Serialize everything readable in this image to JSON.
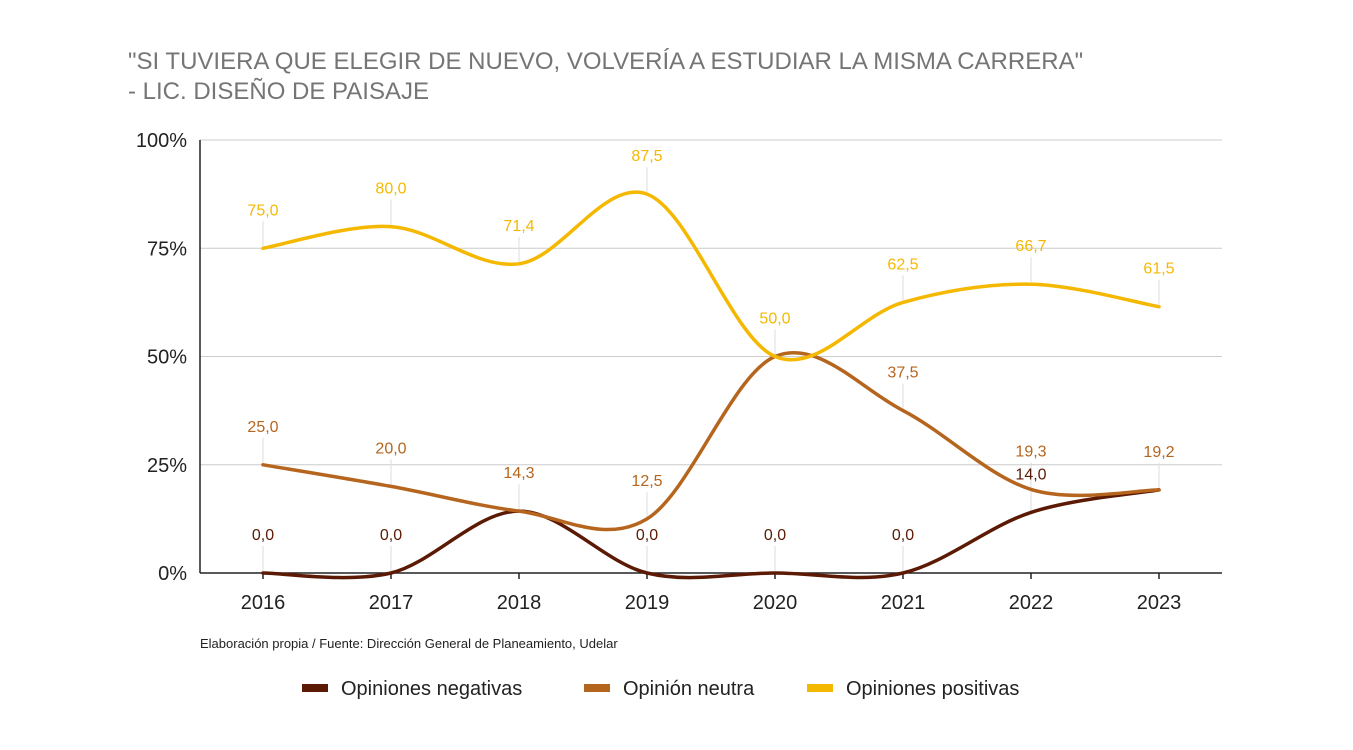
{
  "chart_data": {
    "type": "line",
    "title_line1": "\"SI TUVIERA QUE ELEGIR DE NUEVO, VOLVERÍA A ESTUDIAR LA MISMA CARRERA\"",
    "title_line2": "-  LIC. DISEÑO DE PAISAJE",
    "source": "Elaboración propia / Fuente: Dirección General de Planeamiento, Udelar",
    "categories": [
      "2016",
      "2017",
      "2018",
      "2019",
      "2020",
      "2021",
      "2022",
      "2023"
    ],
    "ylim": [
      0,
      100
    ],
    "yticks": [
      0,
      25,
      50,
      75,
      100
    ],
    "ytick_labels": [
      "0%",
      "25%",
      "50%",
      "75%",
      "100%"
    ],
    "grid": true,
    "smooth": true,
    "legend_position": "bottom",
    "series": [
      {
        "name": "Opiniones negativas",
        "color": "#5c1a05",
        "values": [
          0.0,
          0.0,
          14.3,
          0.0,
          0.0,
          0.0,
          14.0,
          19.2
        ],
        "labels": [
          "0,0",
          "0,0",
          "",
          "0,0",
          "0,0",
          "0,0",
          "14,0",
          ""
        ]
      },
      {
        "name": "Opinión neutra",
        "color": "#b5651d",
        "values": [
          25.0,
          20.0,
          14.3,
          12.5,
          50.0,
          37.5,
          19.3,
          19.2
        ],
        "labels": [
          "25,0",
          "20,0",
          "14,3",
          "12,5",
          "",
          "37,5",
          "19,3",
          "19,2"
        ]
      },
      {
        "name": "Opiniones positivas",
        "color": "#f5b800",
        "values": [
          75.0,
          80.0,
          71.4,
          87.5,
          50.0,
          62.5,
          66.7,
          61.5
        ],
        "labels": [
          "75,0",
          "80,0",
          "71,4",
          "87,5",
          "50,0",
          "62,5",
          "66,7",
          "61,5"
        ]
      }
    ]
  }
}
